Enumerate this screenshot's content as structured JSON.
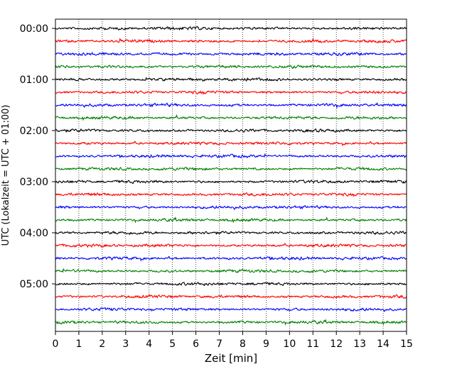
{
  "chart_data": {
    "type": "line",
    "title": "",
    "xlabel": "Zeit  [min]",
    "ylabel": "UTC (Lokalzeit = UTC + 01:00)",
    "xlim": [
      0,
      15
    ],
    "x_ticks": [
      "0",
      "1",
      "2",
      "3",
      "4",
      "5",
      "6",
      "7",
      "8",
      "9",
      "10",
      "11",
      "12",
      "13",
      "14",
      "15"
    ],
    "y_ticks": [
      "00:00",
      "01:00",
      "02:00",
      "03:00",
      "04:00",
      "05:00"
    ],
    "grid": "vertical dotted",
    "legend": "none",
    "colors": [
      "#000000",
      "#ff0000",
      "#0000ff",
      "#007f00"
    ],
    "series": [
      {
        "start": "00:00",
        "color": "#000000"
      },
      {
        "start": "00:15",
        "color": "#ff0000"
      },
      {
        "start": "00:30",
        "color": "#0000ff"
      },
      {
        "start": "00:45",
        "color": "#007f00"
      },
      {
        "start": "01:00",
        "color": "#000000"
      },
      {
        "start": "01:15",
        "color": "#ff0000"
      },
      {
        "start": "01:30",
        "color": "#0000ff"
      },
      {
        "start": "01:45",
        "color": "#007f00"
      },
      {
        "start": "02:00",
        "color": "#000000"
      },
      {
        "start": "02:15",
        "color": "#ff0000"
      },
      {
        "start": "02:30",
        "color": "#0000ff"
      },
      {
        "start": "02:45",
        "color": "#007f00"
      },
      {
        "start": "03:00",
        "color": "#000000"
      },
      {
        "start": "03:15",
        "color": "#ff0000"
      },
      {
        "start": "03:30",
        "color": "#0000ff"
      },
      {
        "start": "03:45",
        "color": "#007f00"
      },
      {
        "start": "04:00",
        "color": "#000000"
      },
      {
        "start": "04:15",
        "color": "#ff0000"
      },
      {
        "start": "04:30",
        "color": "#0000ff"
      },
      {
        "start": "04:45",
        "color": "#007f00"
      },
      {
        "start": "05:00",
        "color": "#000000"
      },
      {
        "start": "05:15",
        "color": "#ff0000"
      },
      {
        "start": "05:30",
        "color": "#0000ff"
      },
      {
        "start": "05:45",
        "color": "#007f00"
      }
    ]
  }
}
